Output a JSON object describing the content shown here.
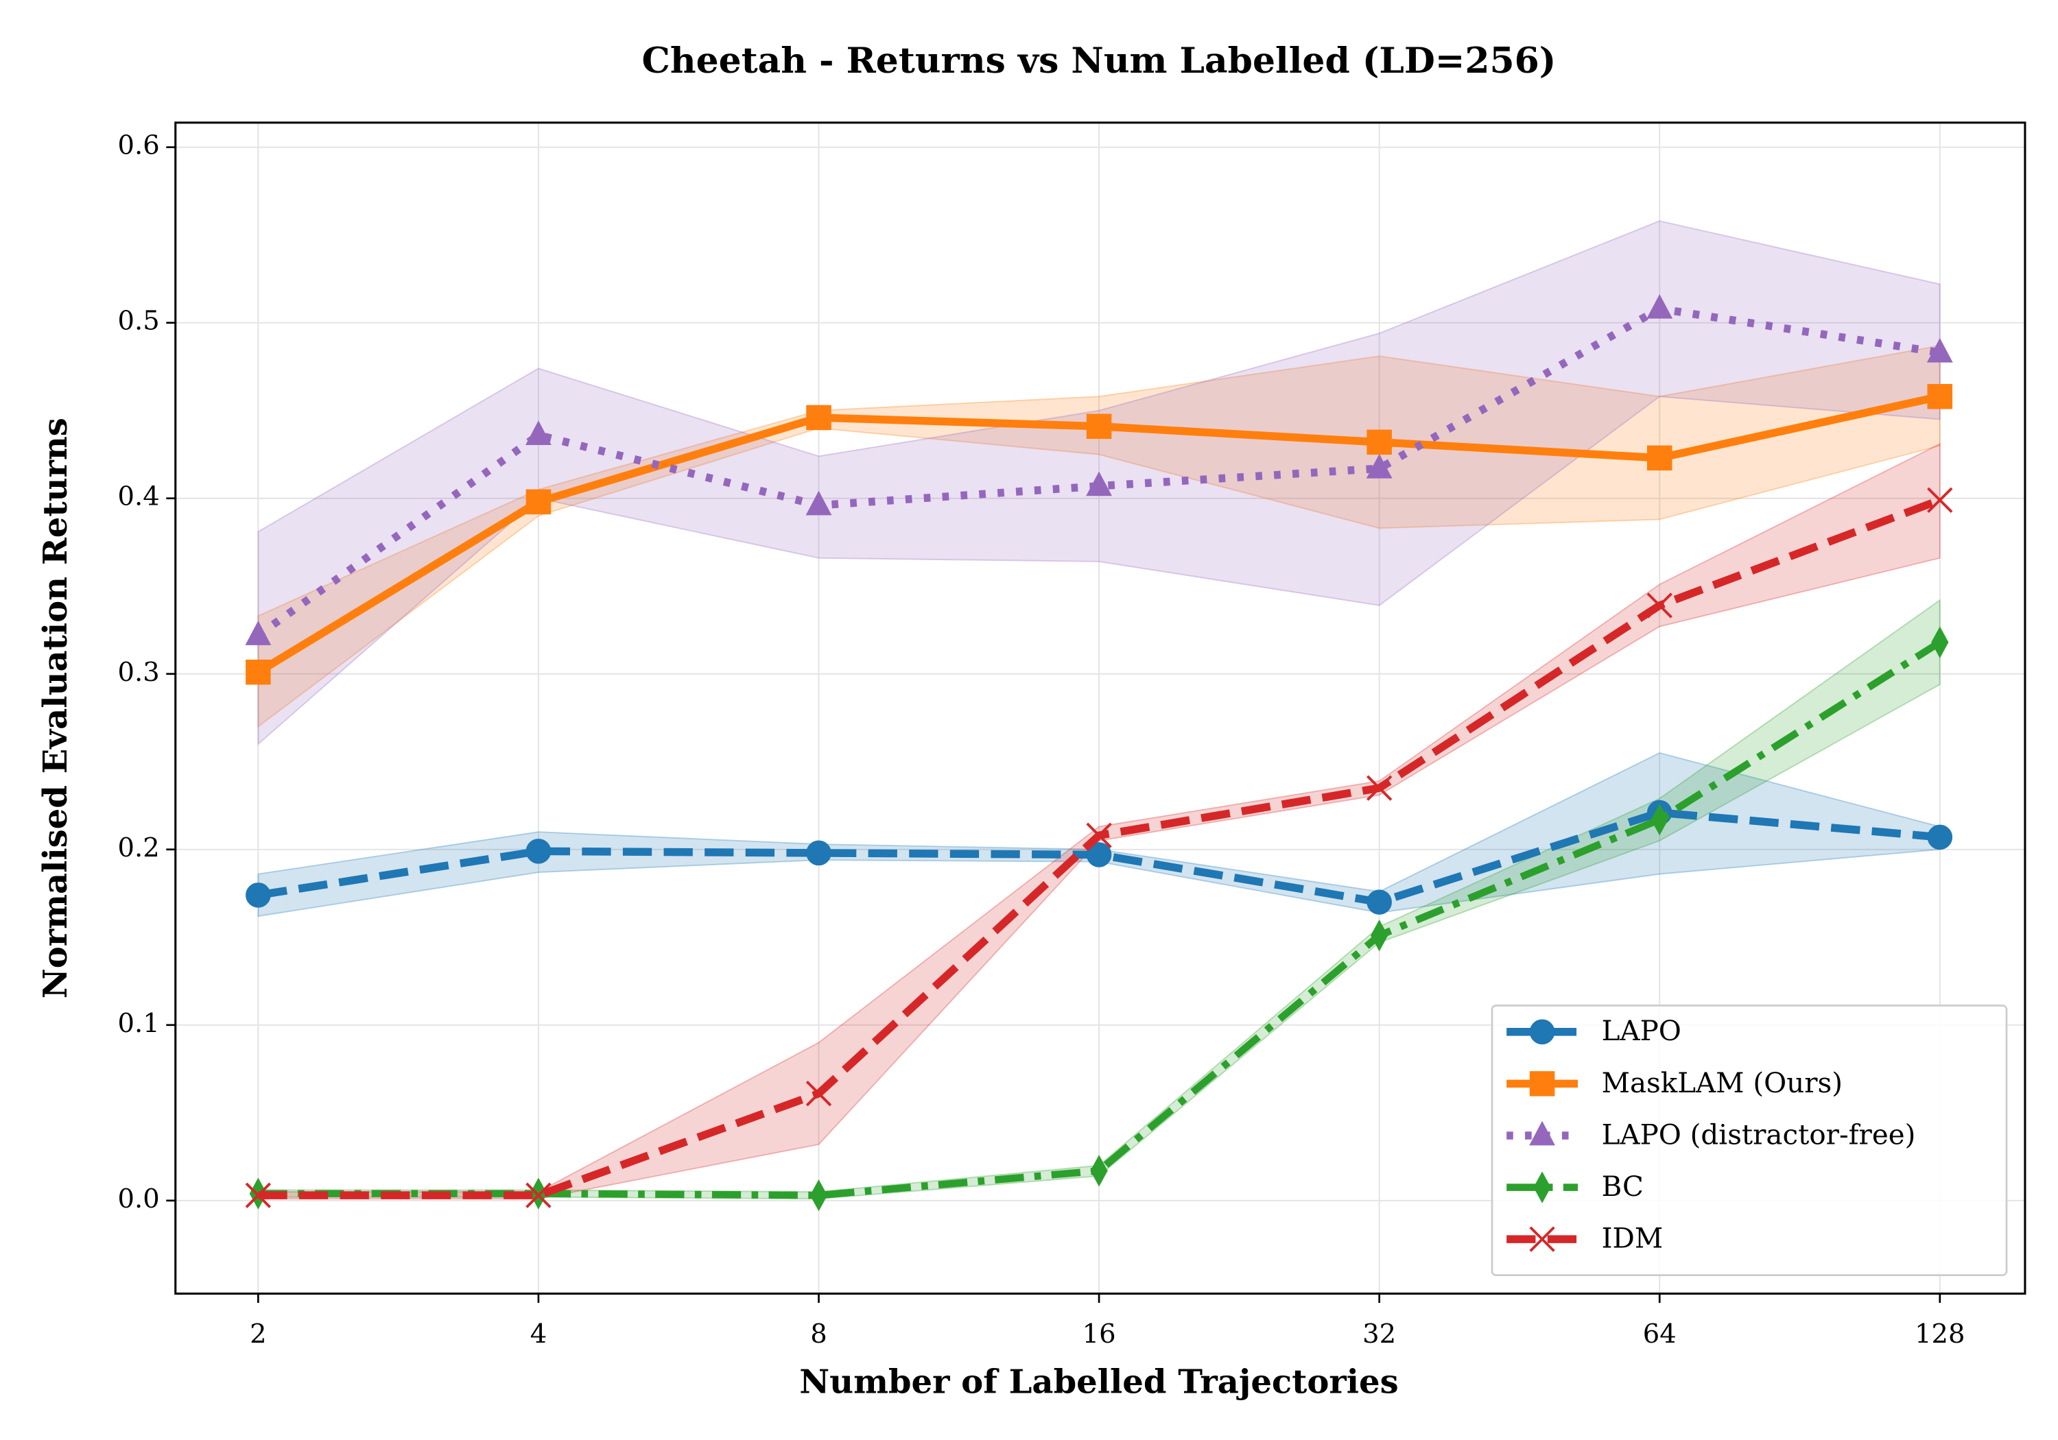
{
  "chart_data": {
    "type": "line",
    "title": "Cheetah - Returns vs Num Labelled (LD=256)",
    "x_label": "Number of Labelled Trajectories",
    "y_label": "Normalised Evaluation Returns",
    "x": [
      2,
      4,
      8,
      16,
      32,
      64,
      128
    ],
    "x_scale": "log2",
    "xlim": [
      1.63,
      158
    ],
    "xticks": [
      2,
      4,
      8,
      16,
      32,
      64,
      128
    ],
    "ylim": [
      -0.053,
      0.614
    ],
    "yticks": [
      {
        "value": 0,
        "label": "0.0"
      },
      0.1,
      0.2,
      0.3,
      0.4,
      0.5,
      0.6
    ],
    "grid": true,
    "legend": "lower right",
    "series": [
      {
        "name": "LAPO",
        "color": "#1f77b4",
        "linestyle": "dashed",
        "marker": "circle",
        "values": [
          0.174,
          0.199,
          0.198,
          0.197,
          0.17,
          0.221,
          0.207
        ],
        "lower": [
          0.162,
          0.187,
          0.194,
          0.193,
          0.164,
          0.186,
          0.2
        ],
        "upper": [
          0.186,
          0.21,
          0.203,
          0.2,
          0.176,
          0.255,
          0.213
        ]
      },
      {
        "name": "MaskLAM (Ours)",
        "color": "#ff7f0e",
        "linestyle": "solid",
        "marker": "square",
        "values": [
          0.301,
          0.398,
          0.446,
          0.441,
          0.432,
          0.423,
          0.458
        ],
        "lower": [
          0.27,
          0.39,
          0.44,
          0.425,
          0.383,
          0.388,
          0.43
        ],
        "upper": [
          0.333,
          0.405,
          0.45,
          0.458,
          0.481,
          0.458,
          0.487
        ]
      },
      {
        "name": "LAPO (distractor-free)",
        "color": "#9467bd",
        "linestyle": "dotted",
        "marker": "triangle",
        "values": [
          0.322,
          0.436,
          0.396,
          0.407,
          0.417,
          0.508,
          0.483
        ],
        "lower": [
          0.26,
          0.4,
          0.366,
          0.364,
          0.339,
          0.458,
          0.445
        ],
        "upper": [
          0.381,
          0.474,
          0.424,
          0.45,
          0.494,
          0.558,
          0.522
        ]
      },
      {
        "name": "BC",
        "color": "#2ca02c",
        "linestyle": "dashdot",
        "marker": "diamond",
        "values": [
          0.004,
          0.004,
          0.003,
          0.017,
          0.151,
          0.217,
          0.318
        ],
        "lower": [
          0.002,
          0.002,
          0.001,
          0.014,
          0.147,
          0.205,
          0.294
        ],
        "upper": [
          0.006,
          0.006,
          0.005,
          0.02,
          0.156,
          0.229,
          0.342
        ]
      },
      {
        "name": "IDM",
        "color": "#d62728",
        "linestyle": "dashed",
        "marker": "x",
        "values": [
          0.003,
          0.003,
          0.061,
          0.208,
          0.235,
          0.339,
          0.399
        ],
        "lower": [
          0.001,
          0.001,
          0.032,
          0.205,
          0.231,
          0.327,
          0.366
        ],
        "upper": [
          0.005,
          0.005,
          0.09,
          0.213,
          0.239,
          0.351,
          0.431
        ]
      }
    ]
  }
}
